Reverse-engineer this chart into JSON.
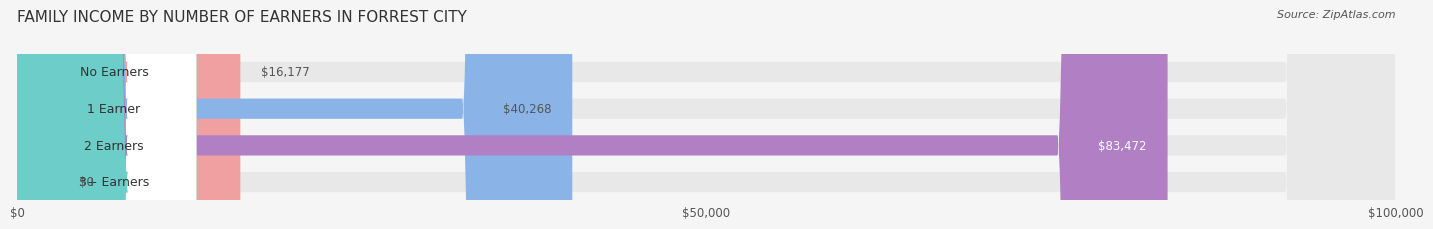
{
  "title": "FAMILY INCOME BY NUMBER OF EARNERS IN FORREST CITY",
  "source": "Source: ZipAtlas.com",
  "categories": [
    "No Earners",
    "1 Earner",
    "2 Earners",
    "3+ Earners"
  ],
  "values": [
    16177,
    40268,
    83472,
    0
  ],
  "bar_colors": [
    "#f0a0a0",
    "#8ab4e8",
    "#b07fc4",
    "#6dcdc8"
  ],
  "label_colors": [
    "#f0a0a0",
    "#8ab4e8",
    "#b07fc4",
    "#6dcdc8"
  ],
  "value_labels": [
    "$16,177",
    "$40,268",
    "$83,472",
    "$0"
  ],
  "value_label_colors": [
    "#555555",
    "#555555",
    "#ffffff",
    "#555555"
  ],
  "xlim": [
    0,
    100000
  ],
  "xticks": [
    0,
    50000,
    100000
  ],
  "xtick_labels": [
    "$0",
    "$50,000",
    "$100,000"
  ],
  "bg_color": "#f5f5f5",
  "bar_bg_color": "#e8e8e8",
  "title_fontsize": 11,
  "label_fontsize": 9,
  "value_fontsize": 8.5
}
